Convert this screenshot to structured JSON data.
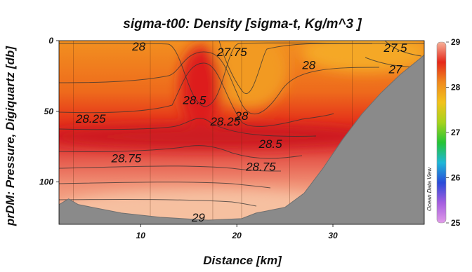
{
  "chart_data": {
    "type": "heatmap",
    "title": "sigma-t00: Density [sigma-t, Kg/m^3 ]",
    "xlabel": "Distance [km]",
    "ylabel": "prDM: Pressure, Digiquartz [db]",
    "xlim": [
      1.5,
      39.5
    ],
    "ylim": [
      130,
      0
    ],
    "y_inverted": true,
    "x_ticks": [
      10,
      20,
      30
    ],
    "y_ticks": [
      0,
      50,
      100
    ],
    "station_lines_km": [
      3,
      11,
      17.5,
      20.5,
      25.5,
      32
    ],
    "colorbar": {
      "label": "",
      "min": 25,
      "max": 29,
      "ticks": [
        25,
        26,
        27,
        28,
        29
      ],
      "colors": [
        "#e19be8",
        "#a55ee0",
        "#2a4bd9",
        "#1fb7d8",
        "#25c436",
        "#a6d31c",
        "#f2c21c",
        "#f08a1e",
        "#e5281a",
        "#f7b29a"
      ]
    },
    "contours": [
      {
        "value": "28",
        "label": "28",
        "x": 9.8,
        "y": 4
      },
      {
        "value": "27.75",
        "label": "27.75",
        "x": 19.5,
        "y": 8
      },
      {
        "value": "28",
        "label": "28",
        "x": 27.5,
        "y": 17
      },
      {
        "value": "27.5",
        "label": "27.5",
        "x": 36.5,
        "y": 5
      },
      {
        "value": "27",
        "label": "27",
        "x": 36.5,
        "y": 20
      },
      {
        "value": "28.25",
        "label": "28.25",
        "x": 4.8,
        "y": 55
      },
      {
        "value": "28.5",
        "label": "28.5",
        "x": 15.6,
        "y": 42
      },
      {
        "value": "28",
        "label": "28",
        "x": 20.5,
        "y": 53
      },
      {
        "value": "28.25",
        "label": "28.25",
        "x": 18.8,
        "y": 57
      },
      {
        "value": "28.5",
        "label": "28.5",
        "x": 23.5,
        "y": 73
      },
      {
        "value": "28.75",
        "label": "28.75",
        "x": 8.5,
        "y": 83
      },
      {
        "value": "28.75",
        "label": "28.75",
        "x": 22.5,
        "y": 89
      },
      {
        "value": "29",
        "label": "29",
        "x": 16,
        "y": 125
      }
    ],
    "bottom_profile_km_db": [
      [
        1.5,
        116
      ],
      [
        2.5,
        112
      ],
      [
        3.5,
        116
      ],
      [
        8,
        122
      ],
      [
        12,
        125
      ],
      [
        17,
        127
      ],
      [
        20.5,
        126
      ],
      [
        22,
        122
      ],
      [
        25,
        118
      ],
      [
        27,
        108
      ],
      [
        29,
        90
      ],
      [
        31,
        70
      ],
      [
        33,
        52
      ],
      [
        35,
        37
      ],
      [
        37,
        24
      ],
      [
        39,
        13
      ],
      [
        39.5,
        10
      ]
    ],
    "watermark": "Ocean Data View"
  }
}
